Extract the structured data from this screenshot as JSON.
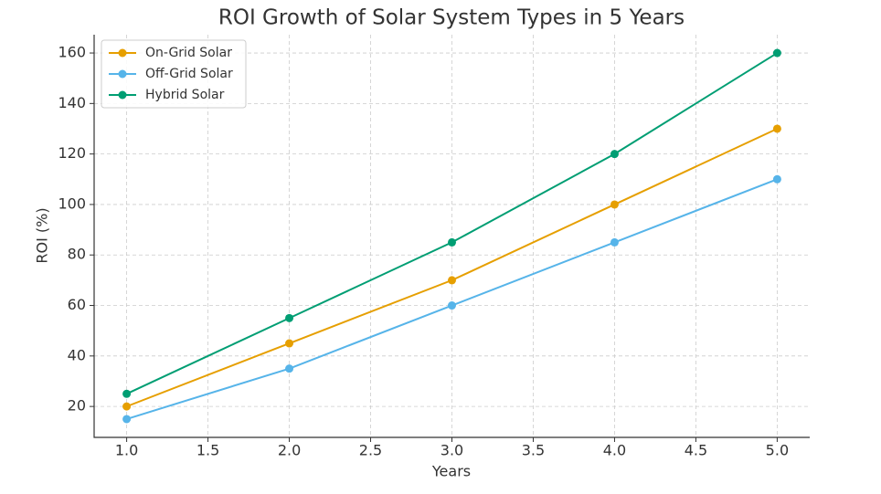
{
  "chart_data": {
    "type": "line",
    "title": "ROI Growth of Solar System Types in 5 Years",
    "xlabel": "Years",
    "ylabel": "ROI (%)",
    "x": [
      1,
      2,
      3,
      4,
      5
    ],
    "series": [
      {
        "name": "On-Grid Solar",
        "color": "#E69F00",
        "values": [
          20,
          45,
          70,
          100,
          130
        ]
      },
      {
        "name": "Off-Grid Solar",
        "color": "#56B4E9",
        "values": [
          15,
          35,
          60,
          85,
          110
        ]
      },
      {
        "name": "Hybrid Solar",
        "color": "#009E73",
        "values": [
          25,
          55,
          85,
          120,
          160
        ]
      }
    ],
    "xlim": [
      0.8,
      5.2
    ],
    "xticks": [
      {
        "value": 1,
        "label": "1.0"
      },
      {
        "value": 1.5,
        "label": "1.5"
      },
      {
        "value": 2,
        "label": "2.0"
      },
      {
        "value": 2.5,
        "label": "2.5"
      },
      {
        "value": 3,
        "label": "3.0"
      },
      {
        "value": 3.5,
        "label": "3.5"
      },
      {
        "value": 4,
        "label": "4.0"
      },
      {
        "value": 4.5,
        "label": "4.5"
      },
      {
        "value": 5,
        "label": "5.0"
      }
    ],
    "ylim": [
      7.75,
      167.25
    ],
    "yticks": [
      20,
      40,
      60,
      80,
      100,
      120,
      140,
      160
    ],
    "grid": true,
    "legend": "upper left"
  }
}
